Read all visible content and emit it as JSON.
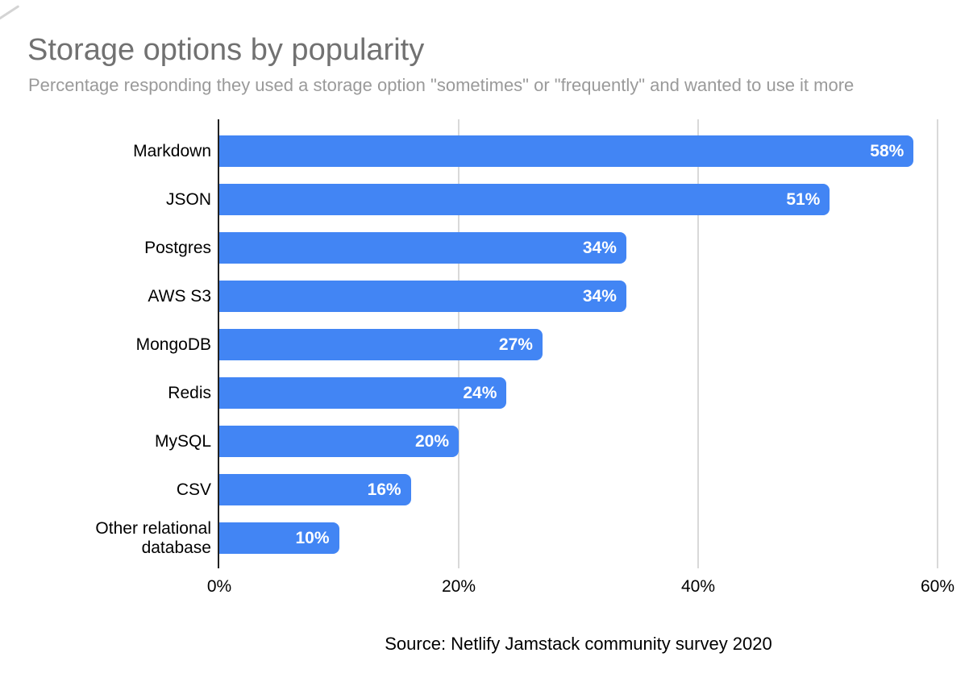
{
  "chart_data": {
    "type": "bar",
    "orientation": "horizontal",
    "title": "Storage options by popularity",
    "subtitle": "Percentage responding they used a storage option \"sometimes\" or \"frequently\" and wanted to use it more",
    "source": "Source: Netlify Jamstack community survey 2020",
    "categories": [
      "Markdown",
      "JSON",
      "Postgres",
      "AWS S3",
      "MongoDB",
      "Redis",
      "MySQL",
      "CSV",
      "Other relational database"
    ],
    "values": [
      58,
      51,
      34,
      34,
      27,
      24,
      20,
      16,
      10
    ],
    "value_labels": [
      "58%",
      "51%",
      "34%",
      "34%",
      "27%",
      "24%",
      "20%",
      "16%",
      "10%"
    ],
    "x_axis": {
      "ticks": [
        0,
        20,
        40,
        60
      ],
      "tick_labels": [
        "0%",
        "20%",
        "40%",
        "60%"
      ],
      "range": [
        0,
        60
      ]
    },
    "grid": true,
    "legend": false,
    "colors": {
      "bar": "#4285f4",
      "gridline": "#d9d9d9",
      "axis_line": "#212121",
      "title": "#717171",
      "subtitle": "#9a9a9a",
      "category_label": "#000000",
      "value_label": "#ffffff",
      "tick_label": "#000000",
      "source": "#000000"
    }
  }
}
